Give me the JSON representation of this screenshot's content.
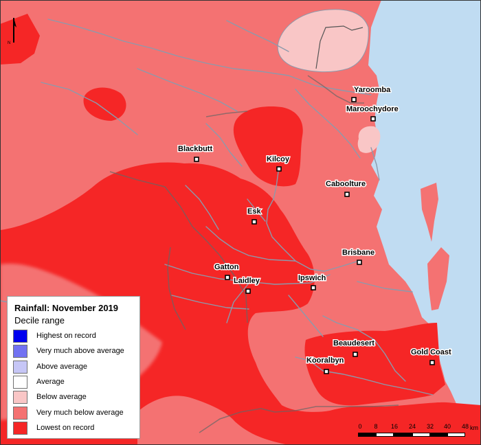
{
  "map": {
    "colors": {
      "sea": "#c0dcf2",
      "very_much_below_average": "#f47272",
      "lowest_on_record": "#f52626",
      "below_average": "#f9c6c6",
      "rivers": "#8c9aac",
      "boundary": "#555555"
    },
    "north_arrow_label": "N",
    "towns": [
      {
        "name": "Yaroomba"
      },
      {
        "name": "Maroochydore"
      },
      {
        "name": "Blackbutt"
      },
      {
        "name": "Kilcoy"
      },
      {
        "name": "Caboolture"
      },
      {
        "name": "Esk"
      },
      {
        "name": "Brisbane"
      },
      {
        "name": "Gatton"
      },
      {
        "name": "Laidley"
      },
      {
        "name": "Ipswich"
      },
      {
        "name": "Beaudesert"
      },
      {
        "name": "Gold Coast"
      },
      {
        "name": "Kooralbyn"
      }
    ]
  },
  "legend": {
    "title": "Rainfall: November 2019",
    "subtitle": "Decile range",
    "items": [
      {
        "label": "Highest on record",
        "color": "#0000ee"
      },
      {
        "label": "Very much above average",
        "color": "#7272f2"
      },
      {
        "label": "Above average",
        "color": "#c6c6f6"
      },
      {
        "label": "Average",
        "color": "#ffffff"
      },
      {
        "label": "Below average",
        "color": "#f9c6c6"
      },
      {
        "label": "Very much below average",
        "color": "#f47272"
      },
      {
        "label": "Lowest on record",
        "color": "#f52626"
      }
    ]
  },
  "scale_bar": {
    "ticks": [
      "0",
      "8",
      "16",
      "24",
      "32",
      "40",
      "48"
    ],
    "unit": "km"
  }
}
